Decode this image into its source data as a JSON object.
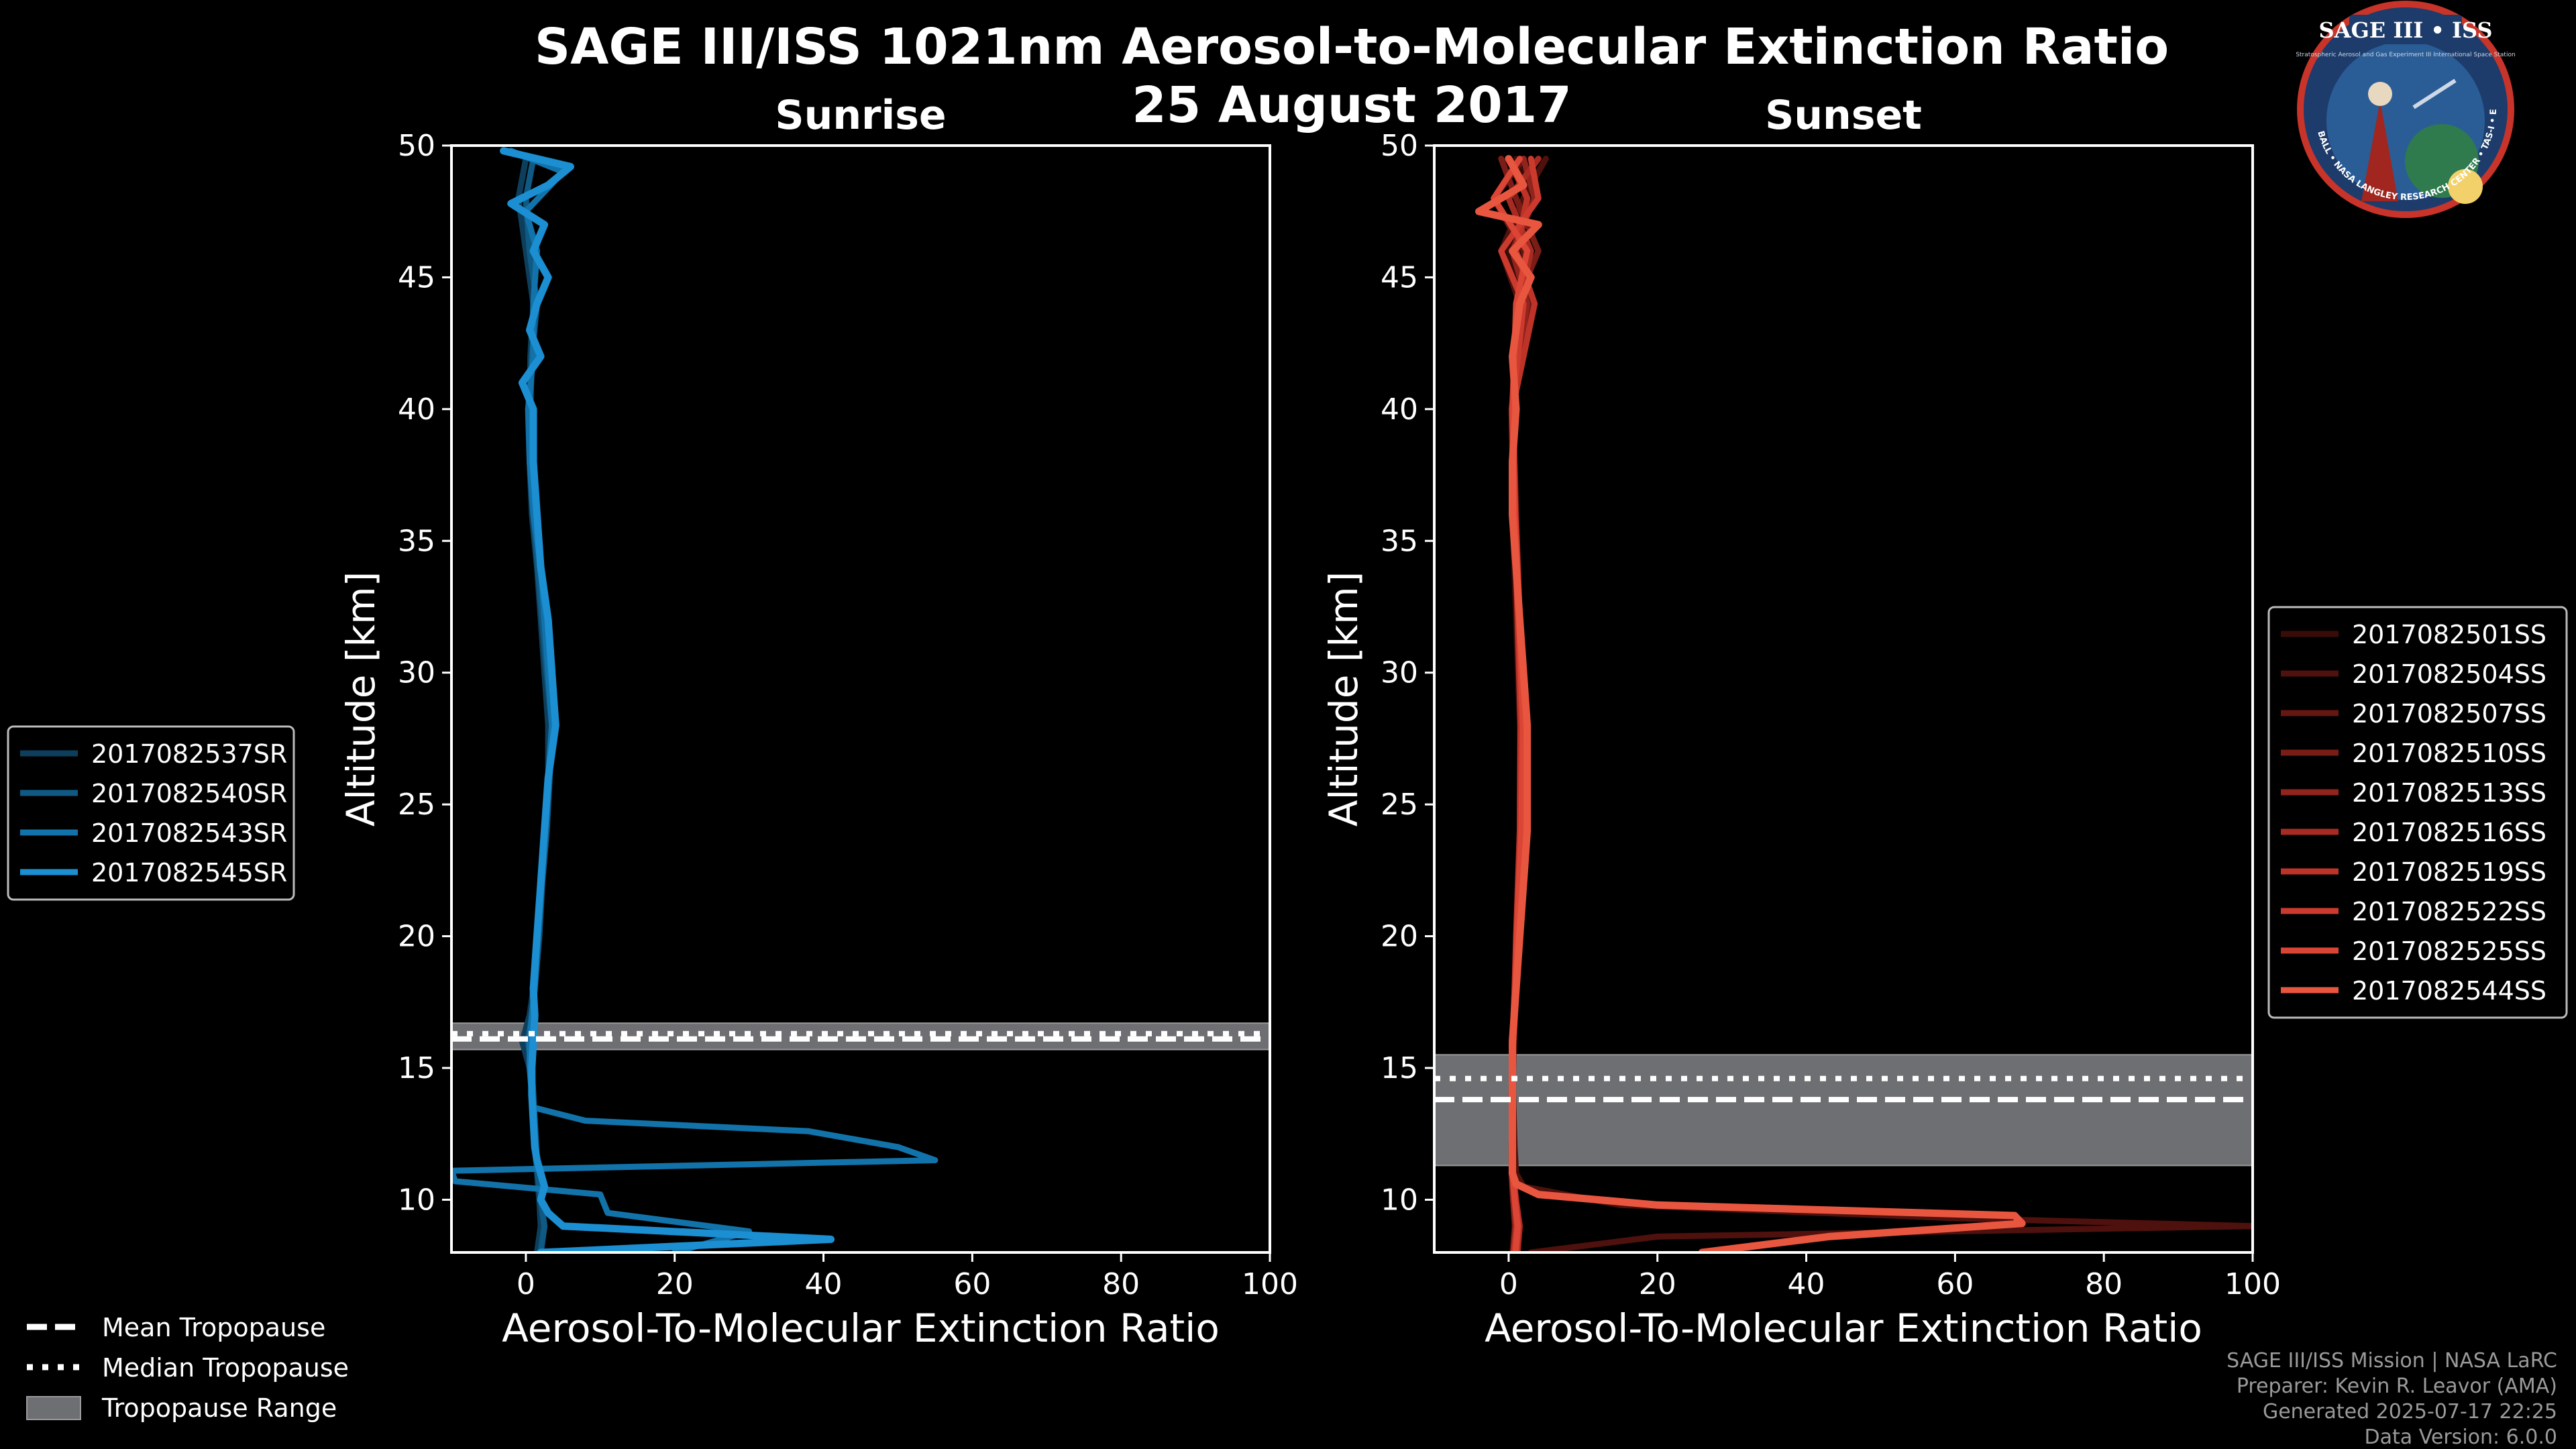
{
  "header": {
    "title_line1": "SAGE III/ISS 1021nm Aerosol-to-Molecular Extinction Ratio",
    "title_line2": "25 August 2017"
  },
  "logo": {
    "top_text": "SAGE III • ISS",
    "sub_text": "Stratospheric Aerosol and Gas Experiment III International Space Station",
    "ring_text": "BALL • NASA LANGLEY RESEARCH CENTER • TAS-I • ESA"
  },
  "footer": {
    "line1": "SAGE III/ISS Mission | NASA LaRC",
    "line2": "Preparer: Kevin R. Leavor (AMA)",
    "line3": "Generated 2025-07-17 22:25",
    "line4": "Data Version: 6.0.0"
  },
  "tropopause_legend": {
    "mean": "Mean Tropopause",
    "median": "Median Tropopause",
    "range": "Tropopause Range"
  },
  "colors": {
    "sunrise": [
      "#0d3f5c",
      "#0f5a85",
      "#1273ab",
      "#1b8fd2"
    ],
    "sunset": [
      "#3a0c09",
      "#4f110d",
      "#651712",
      "#7b1d17",
      "#91241d",
      "#a72b22",
      "#bd3328",
      "#cc3a2e",
      "#db4535",
      "#e8563f"
    ],
    "tropopause_band": "#6e6f72"
  },
  "chart_data": [
    {
      "type": "line",
      "title": "Sunrise",
      "xlabel": "Aerosol-To-Molecular Extinction Ratio",
      "ylabel": "Altitude [km]",
      "xlim": [
        -10,
        100
      ],
      "ylim": [
        8,
        50
      ],
      "xticks": [
        0,
        20,
        40,
        60,
        80,
        100
      ],
      "yticks": [
        10,
        15,
        20,
        25,
        30,
        35,
        40,
        45,
        50
      ],
      "legend_position": "left",
      "tropopause": {
        "mean": 16.1,
        "median": 16.3,
        "range": [
          15.7,
          16.7
        ]
      },
      "series": [
        {
          "name": "2017082537SR",
          "altitude": [
            8.0,
            9.0,
            10.0,
            11.0,
            12.0,
            13.0,
            14.0,
            15.0,
            16.0,
            17.0,
            18.0,
            20.0,
            22.0,
            24.0,
            26.0,
            28.0,
            30.0,
            32.0,
            34.0,
            36.0,
            38.0,
            40.0,
            42.0,
            44.0,
            46.0,
            48.0,
            49.5
          ],
          "ratio": [
            1.5,
            2.0,
            1.8,
            1.5,
            1.2,
            1.2,
            1.0,
            0.5,
            -0.5,
            0.5,
            1.0,
            1.5,
            2.0,
            2.5,
            3.0,
            3.0,
            2.5,
            2.0,
            1.5,
            0.8,
            0.5,
            0.5,
            0.6,
            1.0,
            0.0,
            -1.0,
            0.0
          ]
        },
        {
          "name": "2017082540SR",
          "altitude": [
            8.0,
            9.0,
            10.0,
            11.0,
            12.0,
            13.0,
            14.0,
            15.0,
            16.0,
            17.0,
            18.0,
            20.0,
            22.0,
            24.0,
            26.0,
            28.0,
            30.0,
            32.0,
            34.0,
            36.0,
            38.0,
            40.0,
            42.0,
            44.0,
            46.0,
            48.0,
            49.5
          ],
          "ratio": [
            2.0,
            2.5,
            2.0,
            1.6,
            1.4,
            1.2,
            1.0,
            0.8,
            0.3,
            0.8,
            1.2,
            1.8,
            2.2,
            2.8,
            3.2,
            3.5,
            2.8,
            2.2,
            1.6,
            1.0,
            0.8,
            0.6,
            0.8,
            1.5,
            0.5,
            0.0,
            1.0
          ]
        },
        {
          "name": "2017082543SR",
          "altitude": [
            8.0,
            8.8,
            9.5,
            10.2,
            10.7,
            11.1,
            11.5,
            12.0,
            12.6,
            13.0,
            13.5,
            14.0,
            15.0,
            16.0,
            17.0,
            18.0,
            20.0,
            22.0,
            24.0,
            26.0,
            28.0,
            30.0,
            32.0,
            34.0,
            36.0,
            38.0,
            40.0,
            42.0,
            44.0,
            46.0,
            47.5,
            49.0,
            49.8
          ],
          "ratio": [
            20.0,
            30.0,
            11.0,
            10.0,
            -9.5,
            -10.0,
            55.0,
            50.0,
            38.0,
            8.0,
            1.0,
            0.8,
            0.5,
            0.5,
            0.8,
            1.2,
            1.5,
            2.0,
            2.5,
            3.0,
            3.5,
            3.0,
            2.5,
            2.0,
            1.0,
            0.5,
            0.3,
            1.0,
            1.0,
            1.5,
            0.0,
            5.0,
            -2.0
          ]
        },
        {
          "name": "2017082545SR",
          "altitude": [
            8.0,
            8.5,
            9.0,
            9.5,
            10.0,
            10.5,
            11.0,
            11.5,
            12.0,
            13.0,
            14.0,
            15.0,
            16.0,
            17.0,
            18.0,
            20.0,
            22.0,
            24.0,
            26.0,
            28.0,
            30.0,
            32.0,
            34.0,
            36.0,
            38.0,
            40.0,
            41.0,
            42.0,
            43.0,
            44.0,
            45.0,
            46.0,
            47.0,
            47.8,
            48.5,
            49.2,
            49.8
          ],
          "ratio": [
            2.0,
            41.0,
            5.0,
            3.0,
            2.0,
            2.5,
            2.0,
            1.5,
            1.2,
            1.0,
            0.8,
            0.8,
            1.0,
            1.2,
            1.0,
            1.5,
            2.0,
            2.5,
            3.0,
            4.0,
            3.5,
            3.0,
            2.0,
            1.5,
            1.0,
            1.0,
            -0.5,
            2.0,
            0.5,
            1.5,
            3.0,
            1.0,
            2.5,
            -2.0,
            3.0,
            6.0,
            -3.0
          ]
        }
      ]
    },
    {
      "type": "line",
      "title": "Sunset",
      "xlabel": "Aerosol-To-Molecular Extinction Ratio",
      "ylabel": "Altitude [km]",
      "xlim": [
        -10,
        100
      ],
      "ylim": [
        8,
        50
      ],
      "xticks": [
        0,
        20,
        40,
        60,
        80,
        100
      ],
      "yticks": [
        10,
        15,
        20,
        25,
        30,
        35,
        40,
        45,
        50
      ],
      "legend_position": "right",
      "tropopause": {
        "mean": 13.8,
        "median": 14.6,
        "range": [
          11.3,
          15.5
        ]
      },
      "series": [
        {
          "name": "2017082501SS",
          "altitude": [
            8.0,
            9.0,
            10.0,
            11.0,
            12.0,
            14.0,
            16.0,
            18.0,
            20.0,
            24.0,
            28.0,
            32.0,
            36.0,
            40.0,
            44.0,
            46.0,
            48.0,
            49.5
          ],
          "ratio": [
            0.5,
            0.8,
            0.6,
            0.4,
            0.5,
            0.5,
            0.5,
            0.8,
            1.0,
            1.5,
            1.5,
            1.0,
            0.5,
            0.5,
            2.0,
            0.0,
            3.0,
            1.0
          ]
        },
        {
          "name": "2017082504SS",
          "altitude": [
            8.0,
            8.6,
            9.0,
            9.3,
            9.8,
            10.5,
            11.0,
            12.0,
            14.0,
            16.0,
            18.0,
            20.0,
            24.0,
            28.0,
            32.0,
            36.0,
            40.0,
            44.0,
            46.0,
            48.0,
            49.5
          ],
          "ratio": [
            3.0,
            20.0,
            100.0,
            60.0,
            15.0,
            2.0,
            1.0,
            0.8,
            0.6,
            0.6,
            0.9,
            1.2,
            1.8,
            1.6,
            1.2,
            0.6,
            0.4,
            1.5,
            -1.0,
            2.0,
            5.0
          ]
        },
        {
          "name": "2017082507SS",
          "altitude": [
            8.0,
            9.0,
            10.0,
            11.0,
            12.0,
            14.0,
            16.0,
            18.0,
            20.0,
            24.0,
            28.0,
            32.0,
            36.0,
            40.0,
            44.0,
            46.0,
            48.0,
            49.5
          ],
          "ratio": [
            1.0,
            1.2,
            0.8,
            0.5,
            0.5,
            0.4,
            0.6,
            0.9,
            1.3,
            2.0,
            1.8,
            1.4,
            0.8,
            0.5,
            3.0,
            2.0,
            -2.0,
            2.0
          ]
        },
        {
          "name": "2017082510SS",
          "altitude": [
            8.0,
            9.0,
            10.0,
            11.0,
            12.0,
            14.0,
            16.0,
            18.0,
            20.0,
            24.0,
            28.0,
            32.0,
            36.0,
            40.0,
            44.0,
            46.0,
            48.0,
            49.5
          ],
          "ratio": [
            0.8,
            1.0,
            0.7,
            0.5,
            0.5,
            0.5,
            0.7,
            1.0,
            1.2,
            1.8,
            2.0,
            1.5,
            1.0,
            0.6,
            1.0,
            4.0,
            1.0,
            -1.0
          ]
        },
        {
          "name": "2017082513SS",
          "altitude": [
            8.0,
            9.0,
            10.0,
            11.0,
            12.0,
            14.0,
            16.0,
            18.0,
            20.0,
            24.0,
            28.0,
            32.0,
            36.0,
            40.0,
            44.0,
            46.0,
            48.0,
            49.5
          ],
          "ratio": [
            0.6,
            0.9,
            0.6,
            0.4,
            0.4,
            0.5,
            0.6,
            0.8,
            1.1,
            1.6,
            1.7,
            1.3,
            0.7,
            0.4,
            2.5,
            0.5,
            3.5,
            2.0
          ]
        },
        {
          "name": "2017082516SS",
          "altitude": [
            8.0,
            9.0,
            10.0,
            11.0,
            12.0,
            14.0,
            16.0,
            18.0,
            20.0,
            24.0,
            28.0,
            32.0,
            36.0,
            40.0,
            44.0,
            46.0,
            48.0,
            49.5
          ],
          "ratio": [
            1.2,
            1.5,
            1.0,
            0.6,
            0.5,
            0.5,
            0.6,
            0.9,
            1.2,
            1.7,
            1.9,
            1.5,
            0.9,
            0.6,
            1.5,
            3.0,
            0.0,
            4.0
          ]
        },
        {
          "name": "2017082519SS",
          "altitude": [
            8.0,
            9.0,
            10.0,
            11.0,
            12.0,
            14.0,
            16.0,
            18.0,
            20.0,
            24.0,
            28.0,
            32.0,
            36.0,
            40.0,
            44.0,
            46.0,
            48.0,
            49.5
          ],
          "ratio": [
            0.7,
            1.1,
            0.8,
            0.5,
            0.5,
            0.4,
            0.5,
            0.8,
            1.0,
            1.5,
            1.6,
            1.2,
            0.8,
            0.5,
            3.5,
            1.0,
            2.5,
            0.0
          ]
        },
        {
          "name": "2017082522SS",
          "altitude": [
            8.0,
            9.0,
            10.0,
            11.0,
            12.0,
            14.0,
            16.0,
            18.0,
            20.0,
            24.0,
            28.0,
            32.0,
            36.0,
            40.0,
            44.0,
            46.0,
            48.0,
            49.5
          ],
          "ratio": [
            1.0,
            1.3,
            0.9,
            0.6,
            0.5,
            0.5,
            0.6,
            0.9,
            1.2,
            1.8,
            2.0,
            1.5,
            0.9,
            0.5,
            2.0,
            -1.0,
            4.0,
            3.0
          ]
        },
        {
          "name": "2017082525SS",
          "altitude": [
            8.0,
            9.0,
            10.0,
            11.0,
            12.0,
            14.0,
            16.0,
            18.0,
            20.0,
            24.0,
            28.0,
            32.0,
            36.0,
            40.0,
            44.0,
            46.0,
            48.0,
            49.5
          ],
          "ratio": [
            0.9,
            1.2,
            0.8,
            0.5,
            0.5,
            0.5,
            0.6,
            0.9,
            1.1,
            1.7,
            1.9,
            1.4,
            0.8,
            0.5,
            1.0,
            2.5,
            -2.0,
            1.5
          ]
        },
        {
          "name": "2017082544SS",
          "altitude": [
            8.0,
            8.6,
            9.1,
            9.4,
            9.8,
            10.2,
            10.6,
            11.0,
            12.0,
            14.0,
            16.0,
            18.0,
            20.0,
            22.0,
            24.0,
            26.0,
            28.0,
            30.0,
            32.0,
            34.0,
            36.0,
            38.0,
            40.0,
            42.0,
            44.0,
            45.0,
            46.0,
            47.0,
            47.5,
            48.5,
            49.5
          ],
          "ratio": [
            26.0,
            43.0,
            69.0,
            68.0,
            20.0,
            4.0,
            1.0,
            0.5,
            0.5,
            0.5,
            0.5,
            1.0,
            1.5,
            2.0,
            2.5,
            2.5,
            2.5,
            2.0,
            1.5,
            1.0,
            0.5,
            0.5,
            1.0,
            0.5,
            1.5,
            3.0,
            0.5,
            4.0,
            -4.0,
            2.0,
            0.0
          ]
        }
      ]
    }
  ]
}
